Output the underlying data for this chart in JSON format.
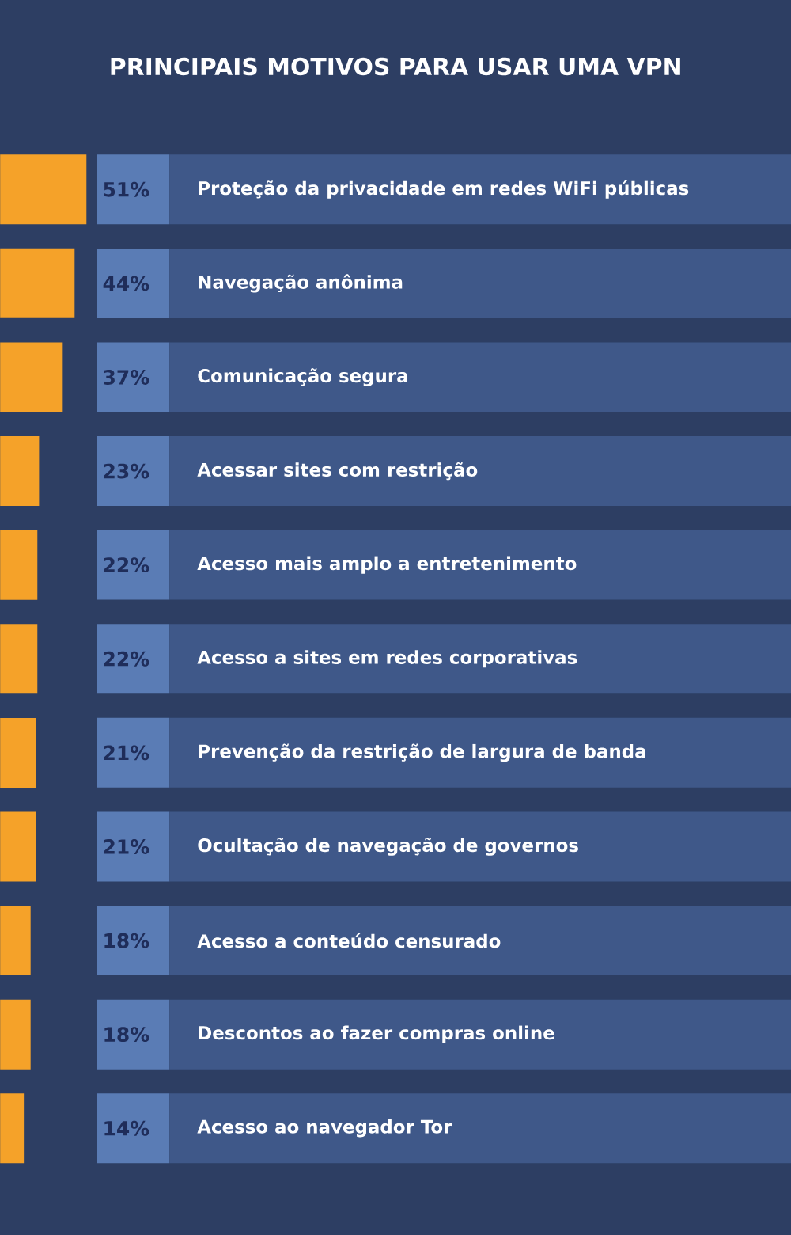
{
  "chart_data": {
    "type": "bar",
    "orientation": "horizontal",
    "title": "PRINCIPAIS MOTIVOS PARA USAR UMA VPN",
    "categories": [
      "Proteção da privacidade em redes WiFi públicas",
      "Navegação anônima",
      "Comunicação segura",
      "Acessar sites com restrição",
      "Acesso mais amplo a entretenimento",
      "Acesso a sites em redes corporativas",
      "Prevenção da restrição de largura de banda",
      "Ocultação de navegação de governos",
      "Acesso a conteúdo censurado",
      "Descontos ao fazer compras online",
      "Acesso ao navegador Tor"
    ],
    "values": [
      51,
      44,
      37,
      23,
      22,
      22,
      21,
      21,
      18,
      18,
      14
    ],
    "value_labels": [
      "51%",
      "44%",
      "37%",
      "23%",
      "22%",
      "22%",
      "21%",
      "21%",
      "18%",
      "18%",
      "14%"
    ],
    "color": "#f5a229"
  }
}
